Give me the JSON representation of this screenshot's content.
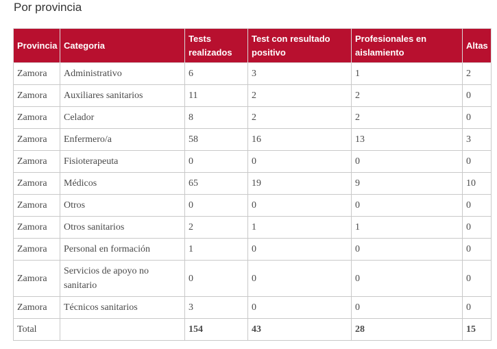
{
  "heading": "Por provincia",
  "table": {
    "headers": {
      "provincia": "Provincia",
      "categoria": "Categoria",
      "tests": "Tests realizados",
      "positivo": "Test con resultado positivo",
      "aislamiento": "Profesionales en aislamiento",
      "altas": "Altas"
    },
    "rows": [
      {
        "provincia": "Zamora",
        "categoria": "Administrativo",
        "tests": "6",
        "positivo": "3",
        "aislamiento": "1",
        "altas": "2"
      },
      {
        "provincia": "Zamora",
        "categoria": "Auxiliares sanitarios",
        "tests": "11",
        "positivo": "2",
        "aislamiento": "2",
        "altas": "0"
      },
      {
        "provincia": "Zamora",
        "categoria": "Celador",
        "tests": "8",
        "positivo": "2",
        "aislamiento": "2",
        "altas": "0"
      },
      {
        "provincia": "Zamora",
        "categoria": "Enfermero/a",
        "tests": "58",
        "positivo": "16",
        "aislamiento": "13",
        "altas": "3"
      },
      {
        "provincia": "Zamora",
        "categoria": "Fisioterapeuta",
        "tests": "0",
        "positivo": "0",
        "aislamiento": "0",
        "altas": "0"
      },
      {
        "provincia": "Zamora",
        "categoria": "Médicos",
        "tests": "65",
        "positivo": "19",
        "aislamiento": "9",
        "altas": "10"
      },
      {
        "provincia": "Zamora",
        "categoria": "Otros",
        "tests": "0",
        "positivo": "0",
        "aislamiento": "0",
        "altas": "0"
      },
      {
        "provincia": "Zamora",
        "categoria": "Otros sanitarios",
        "tests": "2",
        "positivo": "1",
        "aislamiento": "1",
        "altas": "0"
      },
      {
        "provincia": "Zamora",
        "categoria": "Personal en formación",
        "tests": "1",
        "positivo": "0",
        "aislamiento": "0",
        "altas": "0"
      },
      {
        "provincia": "Zamora",
        "categoria": "Servicios de apoyo no sanitario",
        "tests": "0",
        "positivo": "0",
        "aislamiento": "0",
        "altas": "0"
      },
      {
        "provincia": "Zamora",
        "categoria": "Técnicos sanitarios",
        "tests": "3",
        "positivo": "0",
        "aislamiento": "0",
        "altas": "0"
      }
    ],
    "total": {
      "label": "Total",
      "categoria": "",
      "tests": "154",
      "positivo": "43",
      "aislamiento": "28",
      "altas": "15"
    }
  },
  "colors": {
    "header_bg": "#b8102f",
    "header_text": "#ffffff",
    "border": "#c8c8c8"
  }
}
